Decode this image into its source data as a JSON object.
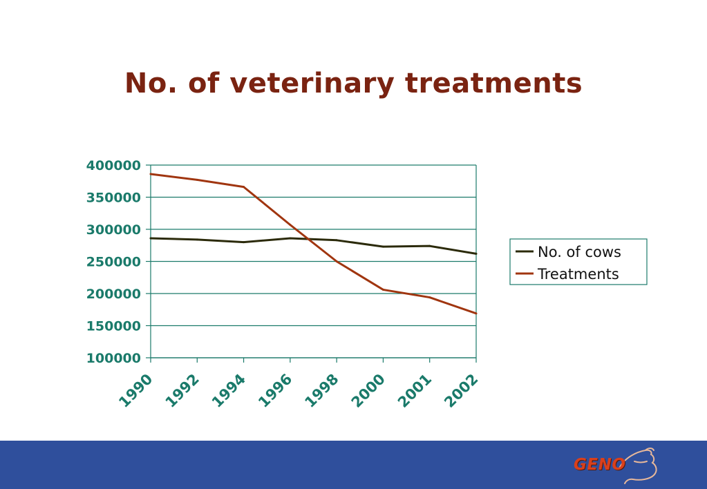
{
  "slide": {
    "title": "No. of veterinary treatments"
  },
  "colors": {
    "title": "#7a2311",
    "axis_text": "#1a7a6a",
    "grid": "#1a7a6a",
    "cows_line": "#2b2a0a",
    "treatments_line": "#a0350f",
    "footer": "#2f4f9c",
    "logo": "#d9401c"
  },
  "chart_data": {
    "type": "line",
    "title": "",
    "xlabel": "",
    "ylabel": "",
    "categories": [
      "1990",
      "1992",
      "1994",
      "1996",
      "1998",
      "2000",
      "2001",
      "2002"
    ],
    "ylim": [
      100000,
      400000
    ],
    "yticks": [
      "100000",
      "150000",
      "200000",
      "250000",
      "300000",
      "350000",
      "400000"
    ],
    "grid": true,
    "legend_position": "right",
    "series": [
      {
        "name": "No. of cows",
        "values": [
          286000,
          284000,
          280000,
          286000,
          283000,
          273000,
          274000,
          262000
        ]
      },
      {
        "name": "Treatments",
        "values": [
          386000,
          377000,
          366000,
          307000,
          250000,
          206000,
          194000,
          169000
        ]
      }
    ]
  },
  "footer": {
    "logo_text": "GENO",
    "logo_icon": "bull-outline-icon"
  }
}
